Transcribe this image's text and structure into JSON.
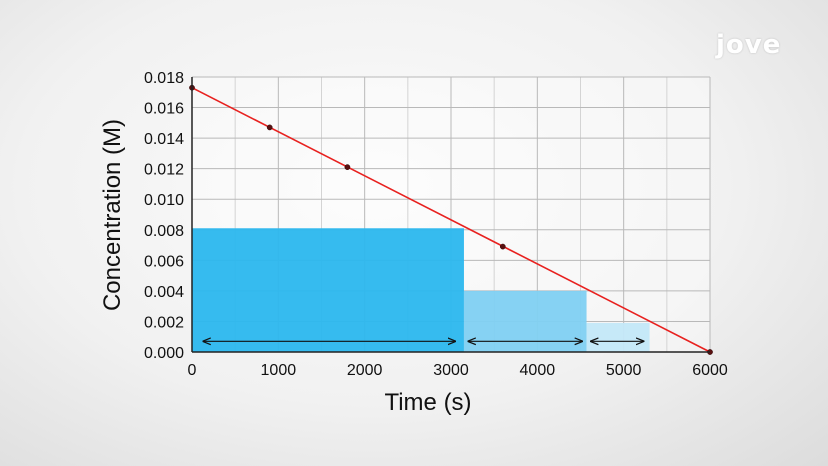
{
  "brand": {
    "logo_text": "jove"
  },
  "chart_data": {
    "type": "line",
    "xlabel": "Time (s)",
    "ylabel": "Concentration (M)",
    "xlim": [
      0,
      6000
    ],
    "ylim": [
      0,
      0.018
    ],
    "x_ticks": [
      "0",
      "1000",
      "2000",
      "3000",
      "4000",
      "5000",
      "6000"
    ],
    "y_ticks": [
      "0.000",
      "0.002",
      "0.004",
      "0.006",
      "0.008",
      "0.010",
      "0.012",
      "0.014",
      "0.016",
      "0.018"
    ],
    "grid": true,
    "series": [
      {
        "color": "#e8211f",
        "points": [
          {
            "x": 0,
            "y": 0.0173
          },
          {
            "x": 900,
            "y": 0.0147
          },
          {
            "x": 1800,
            "y": 0.0121
          },
          {
            "x": 3600,
            "y": 0.0069
          },
          {
            "x": 6000,
            "y": 0.0
          }
        ]
      }
    ],
    "half_life_bars": [
      {
        "x_start": 0,
        "x_end": 3150,
        "height": 0.0081,
        "color": "#2bb7ee"
      },
      {
        "x_start": 3150,
        "x_end": 4570,
        "height": 0.004,
        "color": "#7fd0f2"
      },
      {
        "x_start": 4570,
        "x_end": 5300,
        "height": 0.0019,
        "color": "#c3e8f8"
      }
    ],
    "arrows": [
      {
        "x_start": 130,
        "x_end": 3050,
        "y": 0.0007
      },
      {
        "x_start": 3200,
        "x_end": 4520,
        "y": 0.0007
      },
      {
        "x_start": 4620,
        "x_end": 5230,
        "y": 0.0007
      }
    ]
  }
}
